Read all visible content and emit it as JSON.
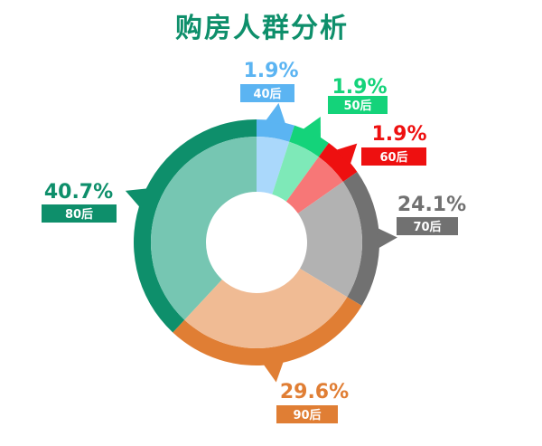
{
  "title": "购房人群分析",
  "chart_data": {
    "type": "pie",
    "title": "购房人群分析",
    "categories": [
      "40后",
      "50后",
      "60后",
      "70后",
      "90后",
      "80后"
    ],
    "values": [
      1.9,
      1.9,
      1.9,
      24.1,
      29.6,
      40.7
    ],
    "labels": [
      "1.9%",
      "1.9%",
      "1.9%",
      "24.1%",
      "29.6%",
      "40.7%"
    ],
    "colors": [
      "#5bb4f2",
      "#14d37a",
      "#ee1010",
      "#717171",
      "#e07e34",
      "#0e8f6b"
    ],
    "inner_colors": [
      "#aad8fb",
      "#7ee9b8",
      "#f77777",
      "#b2b2b2",
      "#f0bb94",
      "#76c6b2"
    ]
  }
}
